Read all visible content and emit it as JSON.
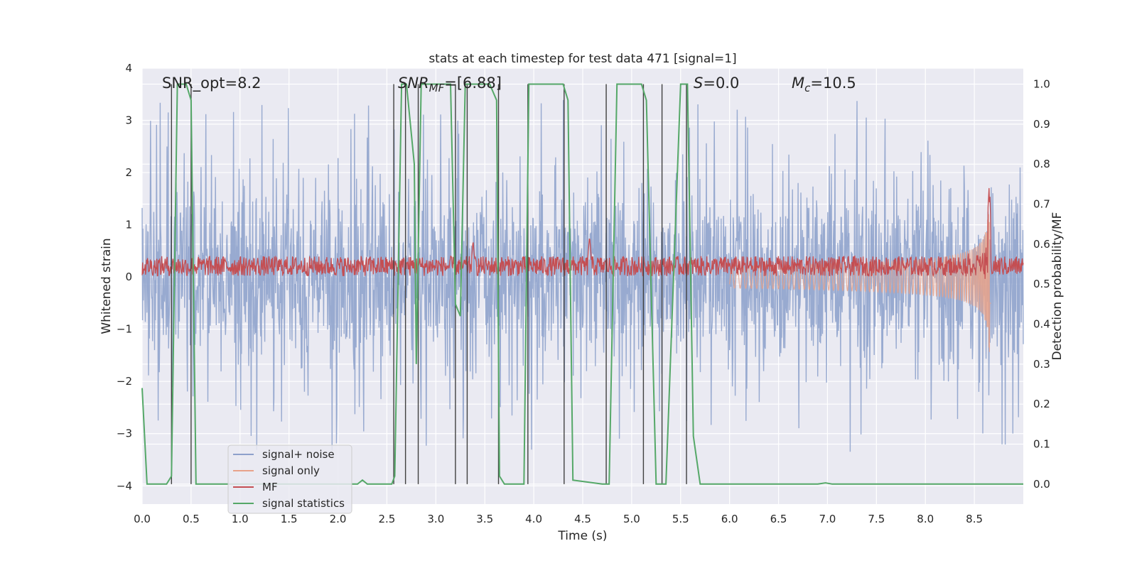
{
  "chart_data": {
    "type": "line",
    "title": "stats at each timestep for test data 471 [signal=1]",
    "xlabel": "Time (s)",
    "ylabel": "Whitened strain",
    "y2label": "Detection probability/MF",
    "xlim": [
      0.0,
      9.0
    ],
    "ylim": [
      -4.35,
      4.0
    ],
    "y2lim": [
      -0.05,
      1.04
    ],
    "x_ticks": [
      0.0,
      0.5,
      1.0,
      1.5,
      2.0,
      2.5,
      3.0,
      3.5,
      4.0,
      4.5,
      5.0,
      5.5,
      6.0,
      6.5,
      7.0,
      7.5,
      8.0,
      8.5
    ],
    "x_tick_labels": [
      "0.0",
      "0.5",
      "1.0",
      "1.5",
      "2.0",
      "2.5",
      "3.0",
      "3.5",
      "4.0",
      "4.5",
      "5.0",
      "5.5",
      "6.0",
      "6.5",
      "7.0",
      "7.5",
      "8.0",
      "8.5"
    ],
    "y_ticks": [
      -4,
      -3,
      -2,
      -1,
      0,
      1,
      2,
      3,
      4
    ],
    "y_tick_labels": [
      "−4",
      "−3",
      "−2",
      "−1",
      "0",
      "1",
      "2",
      "3",
      "4"
    ],
    "y2_ticks": [
      0.0,
      0.1,
      0.2,
      0.3,
      0.4,
      0.5,
      0.6,
      0.7,
      0.8,
      0.9,
      1.0
    ],
    "y2_tick_labels": [
      "0.0",
      "0.1",
      "0.2",
      "0.3",
      "0.4",
      "0.5",
      "0.6",
      "0.7",
      "0.8",
      "0.9",
      "1.0"
    ],
    "annotations": {
      "snr_opt": "SNR_opt=8.2",
      "snr_mf": "SNR",
      "snr_mf_sub": "MF",
      "snr_mf_val": "=[6.88]",
      "s_label": "S",
      "s_val": "=0.0",
      "mc_label": "M",
      "mc_sub": "c",
      "mc_val": "=10.5"
    },
    "legend": {
      "position": "lower-left",
      "entries": [
        {
          "name": "signal+ noise",
          "color": "#8da0cb"
        },
        {
          "name": "signal only",
          "color": "#e8a28a"
        },
        {
          "name": "MF",
          "color": "#c44e52"
        },
        {
          "name": "signal statistics",
          "color": "#55a868"
        }
      ]
    },
    "series": {
      "noise": {
        "name": "signal+ noise",
        "axis": "left",
        "color": "#8fa3cc",
        "envelope_min": -3.7,
        "envelope_max": 3.4,
        "typical_spread": 1.35
      },
      "signal_only": {
        "name": "signal only",
        "axis": "left",
        "color": "#e8a28a",
        "chirp_start": 6.0,
        "chirp_peak_time": 8.65,
        "chirp_peak_amplitude": 1.5
      },
      "mf": {
        "name": "MF",
        "axis": "right",
        "color": "#c44e52",
        "baseline": 0.545,
        "spike_times": [
          3.38,
          4.57,
          8.65
        ],
        "spike_values": [
          0.61,
          0.62,
          0.72
        ]
      },
      "signal_statistics": {
        "name": "signal statistics",
        "axis": "right",
        "color": "#55a868",
        "x": [
          0.0,
          0.05,
          0.25,
          0.3,
          0.36,
          0.45,
          0.5,
          0.55,
          1.0,
          2.0,
          2.2,
          2.25,
          2.3,
          2.55,
          2.58,
          2.65,
          2.7,
          2.78,
          2.8,
          2.85,
          2.95,
          3.15,
          3.2,
          3.25,
          3.3,
          3.38,
          3.55,
          3.62,
          3.65,
          3.7,
          3.8,
          3.9,
          3.95,
          4.3,
          4.35,
          4.4,
          4.7,
          4.77,
          4.85,
          5.1,
          5.15,
          5.25,
          5.3,
          5.35,
          5.5,
          5.57,
          5.63,
          5.7,
          6.9,
          6.98,
          7.05,
          8.0,
          9.0
        ],
        "y": [
          0.24,
          0.0,
          0.0,
          0.02,
          1.0,
          1.0,
          0.96,
          0.0,
          0.0,
          0.0,
          0.0,
          0.01,
          0.0,
          0.0,
          0.02,
          1.0,
          1.0,
          0.8,
          0.3,
          1.0,
          1.0,
          1.0,
          0.45,
          0.42,
          1.0,
          1.0,
          1.0,
          0.96,
          0.02,
          0.0,
          0.0,
          0.0,
          1.0,
          1.0,
          0.96,
          0.01,
          0.0,
          0.0,
          1.0,
          1.0,
          0.96,
          0.0,
          0.0,
          0.0,
          1.0,
          1.0,
          0.12,
          0.0,
          0.0,
          0.003,
          0.0,
          0.0,
          0.0
        ]
      },
      "vertical_markers": {
        "color": "#404040",
        "times": [
          0.3,
          0.5,
          2.57,
          2.69,
          2.82,
          3.2,
          3.32,
          3.64,
          3.94,
          4.31,
          4.74,
          5.12,
          5.31,
          5.56
        ]
      }
    }
  }
}
